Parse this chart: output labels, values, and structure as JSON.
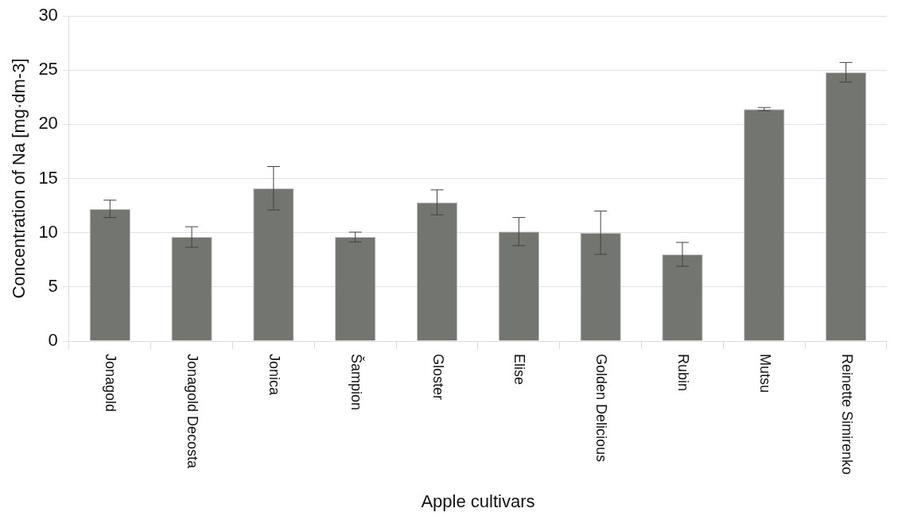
{
  "chart_data": {
    "type": "bar",
    "xlabel": "Apple cultivars",
    "ylabel": "Concentration of Na [mg·dm-3]",
    "categories": [
      "Jonagold",
      "Jonagold Decosta",
      "Jonica",
      "Šampion",
      "Gloster",
      "Elise",
      "Golden Delicious",
      "Rubin",
      "Mutsu",
      "Reinette Simirenko"
    ],
    "values": [
      12.2,
      9.6,
      14.1,
      9.6,
      12.8,
      10.1,
      10.0,
      8.0,
      21.4,
      24.8
    ],
    "errors": [
      0.8,
      0.95,
      2.0,
      0.45,
      1.15,
      1.3,
      2.0,
      1.1,
      0.15,
      0.9
    ],
    "color": "#737571",
    "ylim": [
      0,
      30
    ],
    "yticks": [
      0,
      5,
      10,
      15,
      20,
      25,
      30
    ],
    "grid": "y",
    "legend": false
  }
}
